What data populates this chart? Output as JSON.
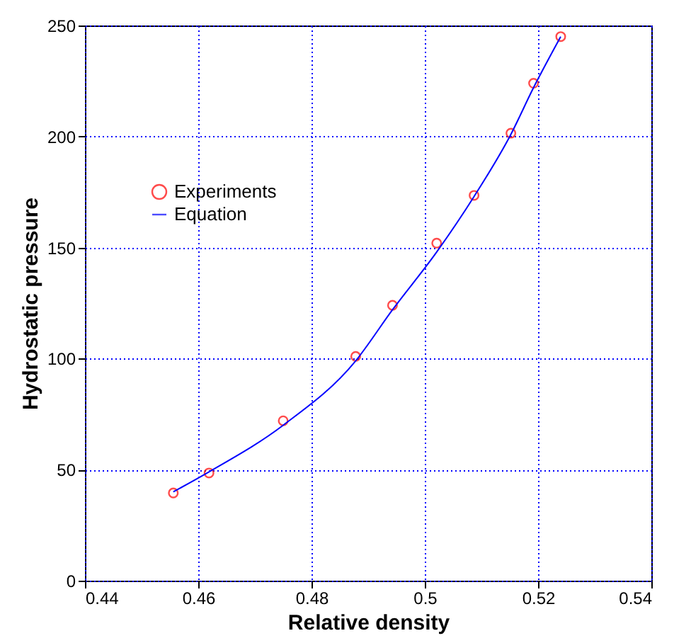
{
  "chart_data": {
    "type": "scatter",
    "xlabel": "Relative density",
    "ylabel": "Hydrostatic pressure",
    "xlim": [
      0.44,
      0.54
    ],
    "xticks": [
      0.44,
      0.46,
      0.48,
      0.5,
      0.52,
      0.54
    ],
    "ylim": [
      0,
      250
    ],
    "yticks": [
      0,
      50,
      100,
      150,
      200,
      250
    ],
    "grid": true,
    "legend": "top left",
    "series": [
      {
        "name": "Experiments",
        "type": "scatter",
        "marker": "circle",
        "color": "#ff0000",
        "x": [
          0.4556,
          0.4619,
          0.475,
          0.4878,
          0.4943,
          0.5021,
          0.5087,
          0.5152,
          0.5192,
          0.524
        ],
        "values": [
          39.5,
          48.5,
          72,
          101,
          124,
          152,
          173.5,
          201.5,
          224,
          245
        ]
      },
      {
        "name": "Equation",
        "type": "line",
        "line_style": "solid",
        "color": "#0000ff",
        "x": [
          0.4556,
          0.4619,
          0.475,
          0.4878,
          0.4943,
          0.5021,
          0.5087,
          0.5152,
          0.5192,
          0.524
        ],
        "values": [
          40,
          49,
          70,
          99,
          122,
          148,
          173,
          201,
          222,
          245
        ]
      }
    ]
  }
}
